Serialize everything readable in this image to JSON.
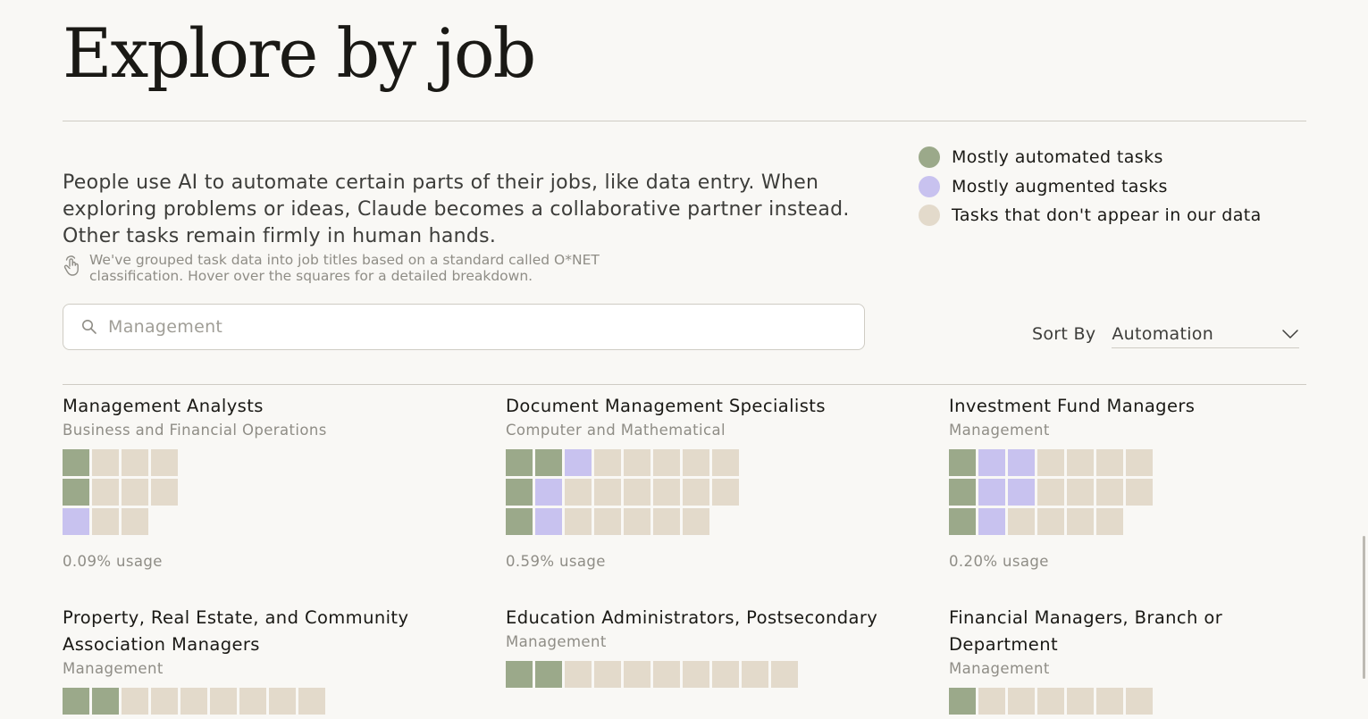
{
  "page_title": "Explore by job",
  "intro": "People use AI to automate certain parts of their jobs, like data entry. When exploring problems or ideas, Claude becomes a collaborative partner instead. Other tasks remain firmly in human hands.",
  "legend": [
    {
      "label": "Mostly automated tasks",
      "color": "#9ba98a"
    },
    {
      "label": "Mostly augmented tasks",
      "color": "#c8c2ef"
    },
    {
      "label": "Tasks that don't appear in our data",
      "color": "#e3dacb"
    }
  ],
  "note": {
    "line1": "We've grouped task data into job titles based on a standard called O*NET",
    "line2": "classification. Hover over the squares for a detailed breakdown."
  },
  "search": {
    "placeholder": "Management",
    "value": ""
  },
  "sort": {
    "label": "Sort By",
    "value": "Automation"
  },
  "colors": {
    "automated": "#9ba98a",
    "augmented": "#c8c2ef",
    "not_in_data": "#e3dacb"
  },
  "jobs": [
    {
      "title": "Management Analysts",
      "category": "Business and Financial Operations",
      "usage": "0.09% usage",
      "grid": [
        [
          "a",
          "n",
          "n",
          "n"
        ],
        [
          "a",
          "n",
          "n",
          "n"
        ],
        [
          "g",
          "n",
          "n"
        ]
      ]
    },
    {
      "title": "Document Management Specialists",
      "category": "Computer and Mathematical",
      "usage": "0.59% usage",
      "grid": [
        [
          "a",
          "a",
          "g",
          "n",
          "n",
          "n",
          "n",
          "n"
        ],
        [
          "a",
          "g",
          "n",
          "n",
          "n",
          "n",
          "n",
          "n"
        ],
        [
          "a",
          "g",
          "n",
          "n",
          "n",
          "n",
          "n"
        ]
      ]
    },
    {
      "title": "Investment Fund Managers",
      "category": "Management",
      "usage": "0.20% usage",
      "grid": [
        [
          "a",
          "g",
          "g",
          "n",
          "n",
          "n",
          "n"
        ],
        [
          "a",
          "g",
          "g",
          "n",
          "n",
          "n",
          "n"
        ],
        [
          "a",
          "g",
          "n",
          "n",
          "n",
          "n"
        ]
      ]
    },
    {
      "title": "Property, Real Estate, and Community Association Managers",
      "category": "Management",
      "usage": "",
      "grid": [
        [
          "a",
          "a",
          "n",
          "n",
          "n",
          "n",
          "n",
          "n",
          "n"
        ]
      ]
    },
    {
      "title": "Education Administrators, Postsecondary",
      "category": "Management",
      "usage": "",
      "grid": [
        [
          "a",
          "a",
          "n",
          "n",
          "n",
          "n",
          "n",
          "n",
          "n",
          "n"
        ]
      ]
    },
    {
      "title": "Financial Managers, Branch or Department",
      "category": "Management",
      "usage": "",
      "grid": [
        [
          "a",
          "n",
          "n",
          "n",
          "n",
          "n",
          "n"
        ]
      ]
    }
  ]
}
